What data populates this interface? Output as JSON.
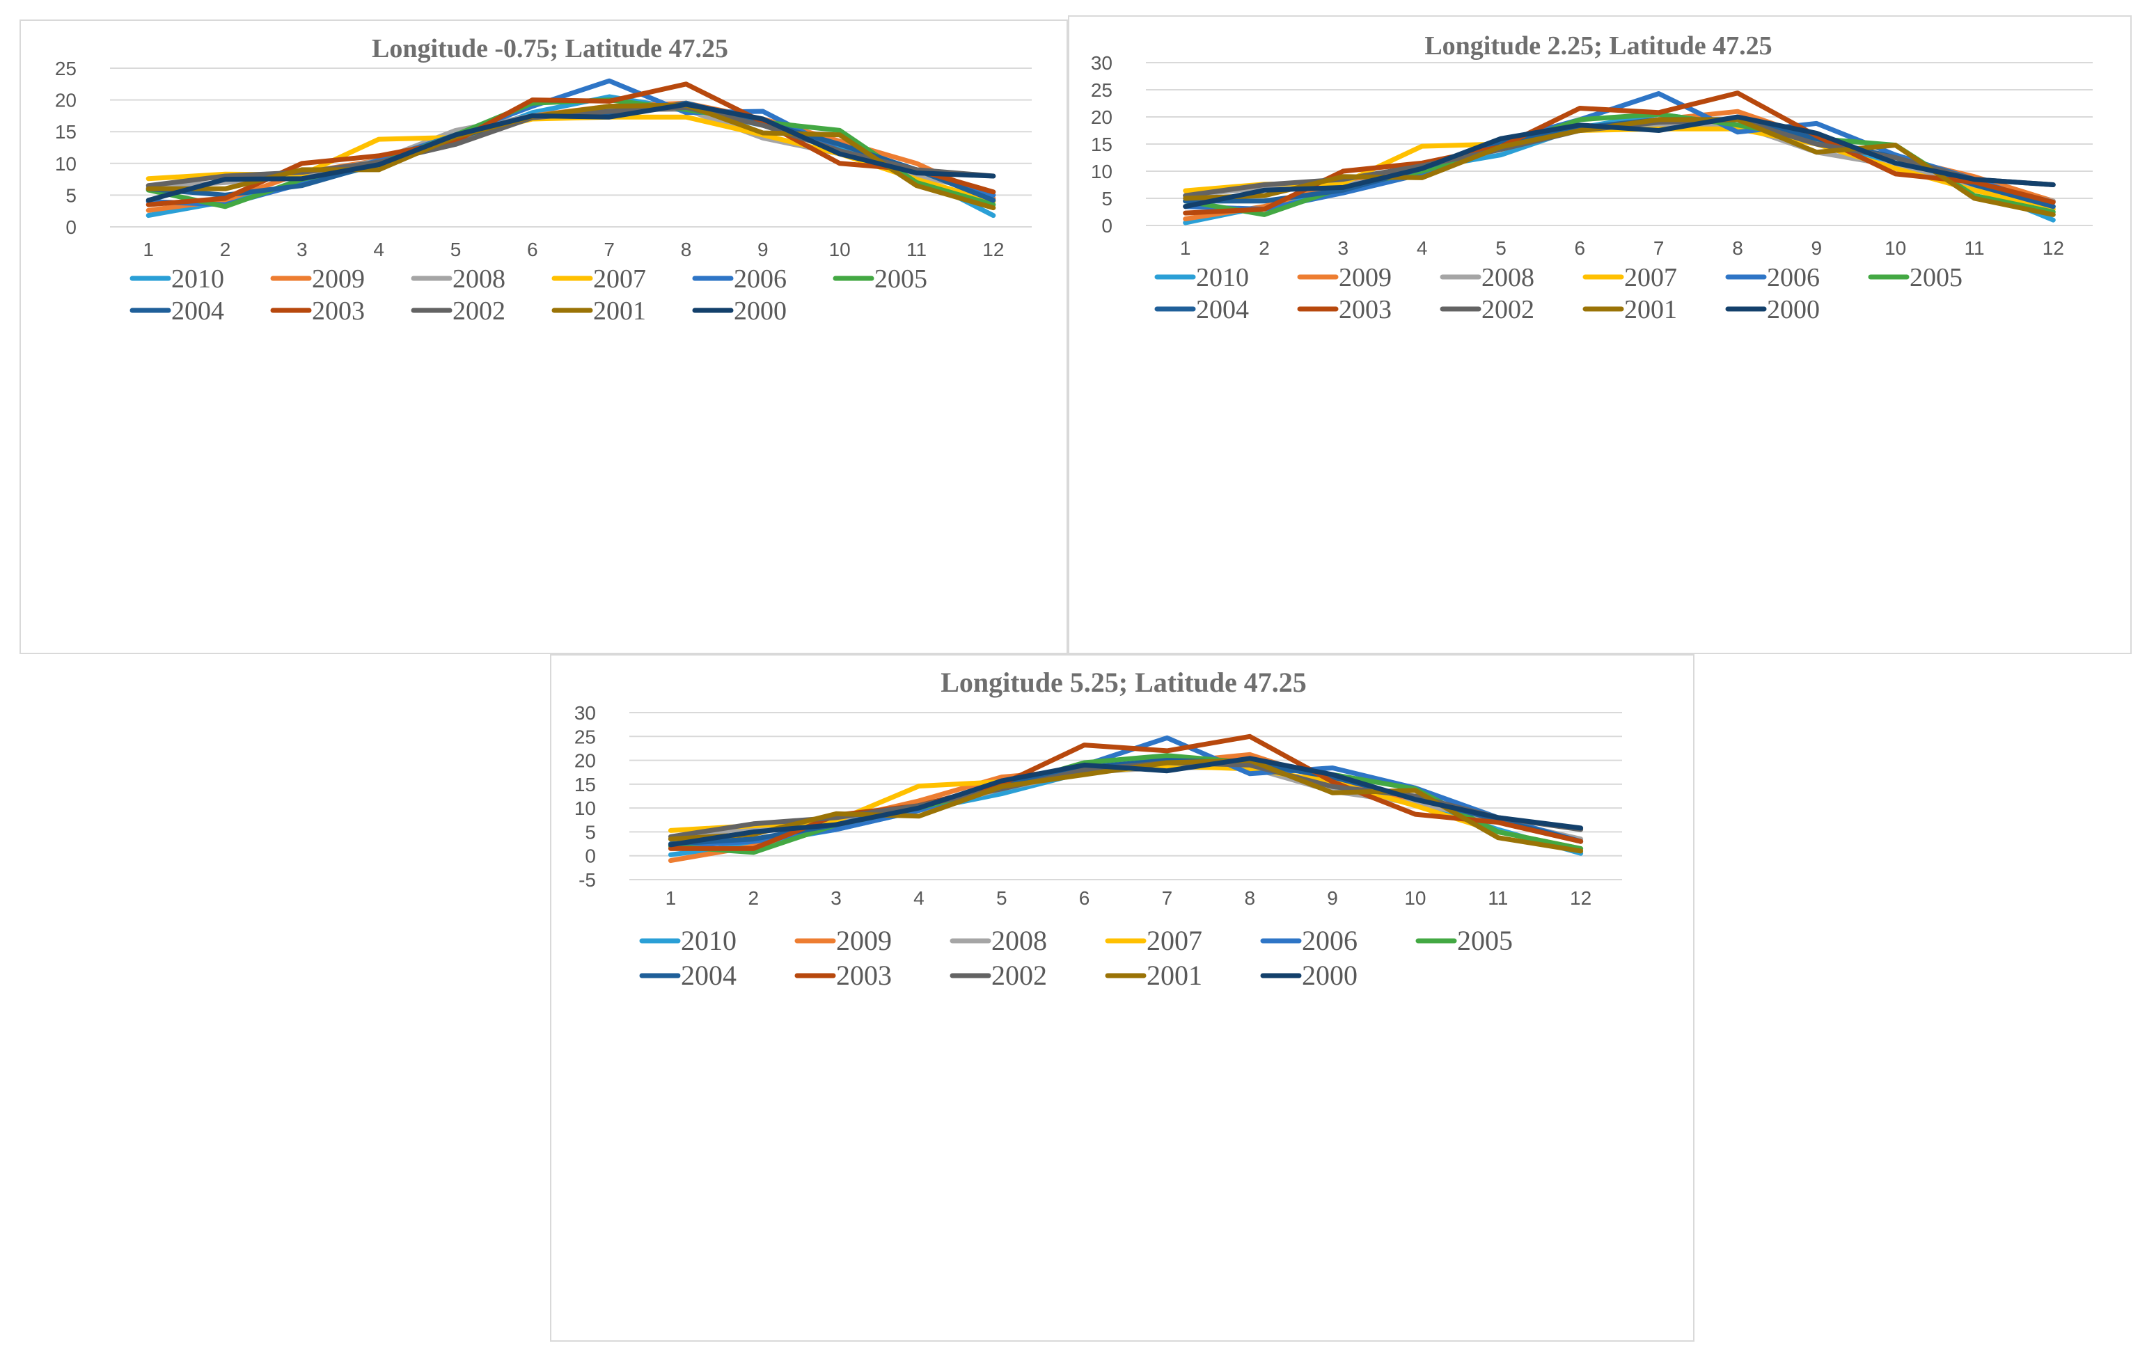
{
  "series_colors": {
    "2010": "#2a9fd6",
    "2009": "#ed7d31",
    "2008": "#a5a5a5",
    "2007": "#ffc000",
    "2006": "#2e75c6",
    "2005": "#43a843",
    "2004": "#1f5f99",
    "2003": "#b7480d",
    "2002": "#636363",
    "2001": "#9a7306",
    "2000": "#13406b"
  },
  "chart_data": [
    {
      "type": "line",
      "title": "Longitude -0.75; Latitude 47.25",
      "categories": [
        "1",
        "2",
        "3",
        "4",
        "5",
        "6",
        "7",
        "8",
        "9",
        "10",
        "11",
        "12"
      ],
      "ylim": [
        0,
        25
      ],
      "yticks": [
        "0",
        "5",
        "10",
        "15",
        "20",
        "25"
      ],
      "legend_position": "bottom",
      "series": [
        {
          "name": "2010",
          "values": [
            1.8,
            4.0,
            6.8,
            9.8,
            13.5,
            18.0,
            20.5,
            18.5,
            16.0,
            12.5,
            8.0,
            1.8
          ]
        },
        {
          "name": "2009",
          "values": [
            2.6,
            4.2,
            8.5,
            10.5,
            14.0,
            17.5,
            19.0,
            19.5,
            17.0,
            13.5,
            10.0,
            4.5
          ]
        },
        {
          "name": "2008",
          "values": [
            6.2,
            7.0,
            8.0,
            10.5,
            15.2,
            17.5,
            18.5,
            18.5,
            14.0,
            11.5,
            8.0,
            5.5
          ]
        },
        {
          "name": "2007",
          "values": [
            7.6,
            8.3,
            8.2,
            13.8,
            14.1,
            17.0,
            17.3,
            17.3,
            14.5,
            11.5,
            7.5,
            4.0
          ]
        },
        {
          "name": "2006",
          "values": [
            4.0,
            3.5,
            6.8,
            10.5,
            14.5,
            19.0,
            23.0,
            18.0,
            18.2,
            12.0,
            9.0,
            5.0
          ]
        },
        {
          "name": "2005",
          "values": [
            5.8,
            3.2,
            7.5,
            10.0,
            14.5,
            19.5,
            20.0,
            18.5,
            16.5,
            15.2,
            7.0,
            3.5
          ]
        },
        {
          "name": "2004",
          "values": [
            6.0,
            5.0,
            6.5,
            10.0,
            14.0,
            17.5,
            17.5,
            19.5,
            16.5,
            13.0,
            9.0,
            4.2
          ]
        },
        {
          "name": "2003",
          "values": [
            3.5,
            4.5,
            10.0,
            11.2,
            13.5,
            20.0,
            19.8,
            22.5,
            16.5,
            10.0,
            9.0,
            5.5
          ]
        },
        {
          "name": "2002",
          "values": [
            6.5,
            8.0,
            8.6,
            10.2,
            13.0,
            17.2,
            18.2,
            18.8,
            16.0,
            12.0,
            9.0,
            8.0
          ]
        },
        {
          "name": "2001",
          "values": [
            6.0,
            6.0,
            9.0,
            9.0,
            14.2,
            17.4,
            19.0,
            19.2,
            14.8,
            14.5,
            6.5,
            3.0
          ]
        },
        {
          "name": "2000",
          "values": [
            4.2,
            7.5,
            7.6,
            9.8,
            14.5,
            17.5,
            17.3,
            19.3,
            17.0,
            11.5,
            8.5,
            8.0
          ]
        }
      ]
    },
    {
      "type": "line",
      "title": "Longitude 2.25; Latitude 47.25",
      "categories": [
        "1",
        "2",
        "3",
        "4",
        "5",
        "6",
        "7",
        "8",
        "9",
        "10",
        "11",
        "12"
      ],
      "ylim": [
        0,
        30
      ],
      "yticks": [
        "0",
        "5",
        "10",
        "15",
        "20",
        "25",
        "30"
      ],
      "legend_position": "bottom",
      "series": [
        {
          "name": "2010",
          "values": [
            0.5,
            3.5,
            6.5,
            10.5,
            13.0,
            18.0,
            20.5,
            18.5,
            15.5,
            11.5,
            7.0,
            1.0
          ]
        },
        {
          "name": "2009",
          "values": [
            1.2,
            3.5,
            8.0,
            11.0,
            14.5,
            18.0,
            19.5,
            21.0,
            16.0,
            12.5,
            9.0,
            4.5
          ]
        },
        {
          "name": "2008",
          "values": [
            5.5,
            7.0,
            7.5,
            9.5,
            15.0,
            17.5,
            18.5,
            18.5,
            13.5,
            11.0,
            7.0,
            4.5
          ]
        },
        {
          "name": "2007",
          "values": [
            6.4,
            7.6,
            7.8,
            14.6,
            15.0,
            17.5,
            17.8,
            17.8,
            15.0,
            10.5,
            6.5,
            3.0
          ]
        },
        {
          "name": "2006",
          "values": [
            3.5,
            3.0,
            6.0,
            9.5,
            15.5,
            19.5,
            24.3,
            17.2,
            18.8,
            13.0,
            8.5,
            3.5
          ]
        },
        {
          "name": "2005",
          "values": [
            4.5,
            2.0,
            7.0,
            10.0,
            14.5,
            19.5,
            20.5,
            18.5,
            16.0,
            14.8,
            5.5,
            2.5
          ]
        },
        {
          "name": "2004",
          "values": [
            4.5,
            4.5,
            6.5,
            10.5,
            15.5,
            18.0,
            19.5,
            19.5,
            16.0,
            12.5,
            7.5,
            3.5
          ]
        },
        {
          "name": "2003",
          "values": [
            2.3,
            3.0,
            10.0,
            11.5,
            14.5,
            21.6,
            20.8,
            24.4,
            16.5,
            9.5,
            8.0,
            4.3
          ]
        },
        {
          "name": "2002",
          "values": [
            5.5,
            7.5,
            8.5,
            11.0,
            14.0,
            17.5,
            19.0,
            19.5,
            15.0,
            12.5,
            8.5,
            7.5
          ]
        },
        {
          "name": "2001",
          "values": [
            5.0,
            5.5,
            9.0,
            8.8,
            14.5,
            17.5,
            19.5,
            19.5,
            13.5,
            14.8,
            5.0,
            2.0
          ]
        },
        {
          "name": "2000",
          "values": [
            3.5,
            6.5,
            7.0,
            10.5,
            16.0,
            18.5,
            17.5,
            20.0,
            17.0,
            11.5,
            8.5,
            7.5
          ]
        }
      ]
    },
    {
      "type": "line",
      "title": "Longitude 5.25; Latitude 47.25",
      "categories": [
        "1",
        "2",
        "3",
        "4",
        "5",
        "6",
        "7",
        "8",
        "9",
        "10",
        "11",
        "12"
      ],
      "ylim": [
        -5,
        30
      ],
      "yticks": [
        "-5",
        "0",
        "5",
        "10",
        "15",
        "20",
        "25",
        "30"
      ],
      "legend_position": "bottom",
      "series": [
        {
          "name": "2010",
          "values": [
            0.2,
            2.5,
            5.5,
            9.5,
            13.0,
            17.5,
            20.5,
            18.5,
            14.5,
            11.5,
            5.5,
            0.5
          ]
        },
        {
          "name": "2009",
          "values": [
            -1.0,
            2.0,
            7.5,
            11.5,
            16.5,
            18.0,
            19.5,
            21.2,
            15.5,
            11.5,
            7.0,
            3.0
          ]
        },
        {
          "name": "2008",
          "values": [
            3.5,
            6.0,
            7.5,
            9.5,
            14.0,
            17.5,
            18.5,
            18.5,
            13.5,
            11.0,
            7.5,
            3.5
          ]
        },
        {
          "name": "2007",
          "values": [
            5.3,
            6.3,
            7.3,
            14.6,
            15.5,
            17.5,
            18.8,
            18.2,
            15.5,
            10.5,
            5.0,
            1.5
          ]
        },
        {
          "name": "2006",
          "values": [
            2.0,
            3.0,
            5.5,
            9.5,
            15.0,
            19.0,
            24.7,
            17.2,
            18.4,
            14.2,
            8.0,
            3.0
          ]
        },
        {
          "name": "2005",
          "values": [
            2.0,
            0.7,
            6.5,
            10.0,
            14.5,
            19.5,
            21.0,
            19.5,
            17.0,
            14.0,
            5.0,
            1.5
          ]
        },
        {
          "name": "2004",
          "values": [
            2.5,
            3.5,
            6.5,
            10.5,
            15.0,
            18.5,
            20.0,
            19.5,
            16.5,
            12.0,
            7.5,
            3.0
          ]
        },
        {
          "name": "2003",
          "values": [
            1.5,
            1.5,
            8.5,
            10.5,
            15.0,
            23.2,
            22.0,
            25.0,
            15.5,
            8.7,
            7.0,
            3.0
          ]
        },
        {
          "name": "2002",
          "values": [
            4.0,
            6.7,
            8.0,
            10.5,
            14.0,
            18.0,
            19.5,
            19.0,
            14.5,
            12.5,
            8.0,
            5.5
          ]
        },
        {
          "name": "2001",
          "values": [
            3.5,
            4.5,
            8.8,
            8.3,
            14.5,
            17.0,
            19.5,
            20.0,
            13.2,
            13.7,
            3.8,
            1.0
          ]
        },
        {
          "name": "2000",
          "values": [
            2.3,
            5.0,
            6.5,
            10.0,
            15.7,
            19.0,
            17.8,
            20.4,
            17.0,
            11.8,
            8.0,
            5.8
          ]
        }
      ]
    }
  ]
}
